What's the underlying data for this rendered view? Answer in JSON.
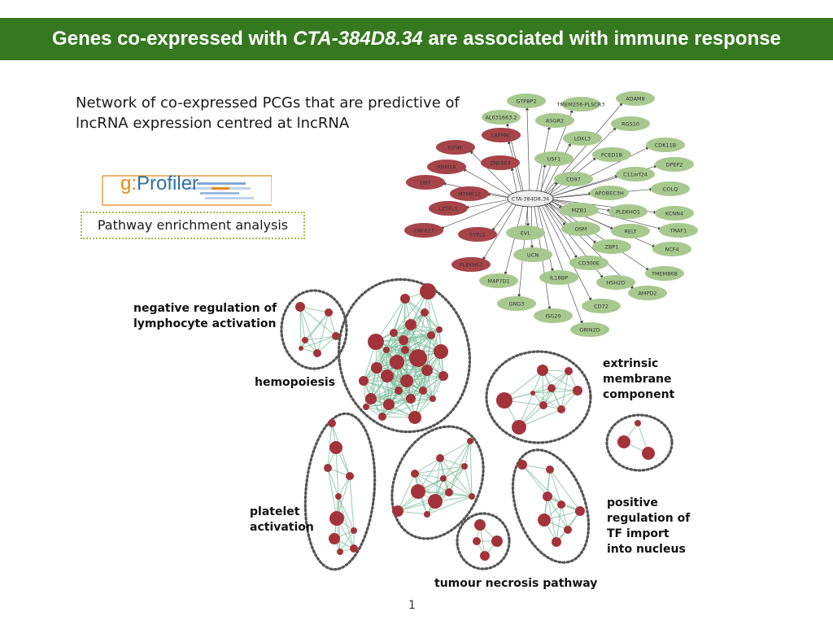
{
  "banner": {
    "title_before": "Genes co-expressed with ",
    "title_gene": "CTA-384D8.34",
    "title_after": " are associated with immune response",
    "color": "#36781f"
  },
  "subtitle": "Network of co-expressed PCGs that are predictive of lncRNA expression centred at lncRNA",
  "logo": {
    "g": "g:",
    "name": "Profiler"
  },
  "enrichment_label": "Pathway enrichment analysis",
  "network": {
    "center": "CTA-384D8.34",
    "node_colors": {
      "red": "#a6444a",
      "green": "#a7c98f",
      "center": "#eeeeee"
    },
    "nodes": [
      {
        "label": "GTPBP2",
        "color": "green"
      },
      {
        "label": "TMEM256-PLSCR3",
        "color": "green"
      },
      {
        "label": "ADAM8",
        "color": "green"
      },
      {
        "label": "AL031663.2",
        "color": "green"
      },
      {
        "label": "ASGR2",
        "color": "green"
      },
      {
        "label": "RGS10",
        "color": "green"
      },
      {
        "label": "LRPPRC",
        "color": "red"
      },
      {
        "label": "LOXL3",
        "color": "green"
      },
      {
        "label": "EIF4E",
        "color": "red"
      },
      {
        "label": "CDK11B",
        "color": "green"
      },
      {
        "label": "USF1",
        "color": "green"
      },
      {
        "label": "PCED1B",
        "color": "green"
      },
      {
        "label": "ZNF664",
        "color": "red"
      },
      {
        "label": "RBM18",
        "color": "red"
      },
      {
        "label": "DPEP2",
        "color": "green"
      },
      {
        "label": "C11orf24",
        "color": "green"
      },
      {
        "label": "CD97",
        "color": "green"
      },
      {
        "label": "DBT",
        "color": "red"
      },
      {
        "label": "COLQ",
        "color": "green"
      },
      {
        "label": "MTMR12",
        "color": "red"
      },
      {
        "label": "APOBEC3H",
        "color": "green"
      },
      {
        "label": "LZTFL1",
        "color": "red"
      },
      {
        "label": "MZB1",
        "color": "green"
      },
      {
        "label": "PLEKHO1",
        "color": "green"
      },
      {
        "label": "KCNN4",
        "color": "green"
      },
      {
        "label": "ZNF627",
        "color": "red"
      },
      {
        "label": "SYPL1",
        "color": "red"
      },
      {
        "label": "EVL",
        "color": "green"
      },
      {
        "label": "OSM",
        "color": "green"
      },
      {
        "label": "RELT",
        "color": "green"
      },
      {
        "label": "TRAF1",
        "color": "green"
      },
      {
        "label": "ZBP1",
        "color": "green"
      },
      {
        "label": "NCF4",
        "color": "green"
      },
      {
        "label": "UCN",
        "color": "green"
      },
      {
        "label": "PLEKHF2",
        "color": "red"
      },
      {
        "label": "CD300E",
        "color": "green"
      },
      {
        "label": "TMEM86B",
        "color": "green"
      },
      {
        "label": "MAP7D1",
        "color": "green"
      },
      {
        "label": "IL18BP",
        "color": "green"
      },
      {
        "label": "HSH2D",
        "color": "green"
      },
      {
        "label": "AMPD2",
        "color": "green"
      },
      {
        "label": "GNG3",
        "color": "green"
      },
      {
        "label": "CD72",
        "color": "green"
      },
      {
        "label": "ISG20",
        "color": "green"
      },
      {
        "label": "GRIN2D",
        "color": "green"
      }
    ]
  },
  "clusters": [
    {
      "label": "negative regulation of\nlymphocyte activation"
    },
    {
      "label": "hemopoiesis"
    },
    {
      "label": "extrinsic\nmembrane\ncomponent"
    },
    {
      "label": "platelet\nactivation"
    },
    {
      "label": "positive\nregulation of\nTF import\ninto nucleus"
    },
    {
      "label": "tumour necrosis pathway"
    }
  ],
  "cluster_colors": {
    "node": "#a3333a",
    "edge": "#7fbf9f",
    "outline": "#555555"
  },
  "page_number": "1"
}
